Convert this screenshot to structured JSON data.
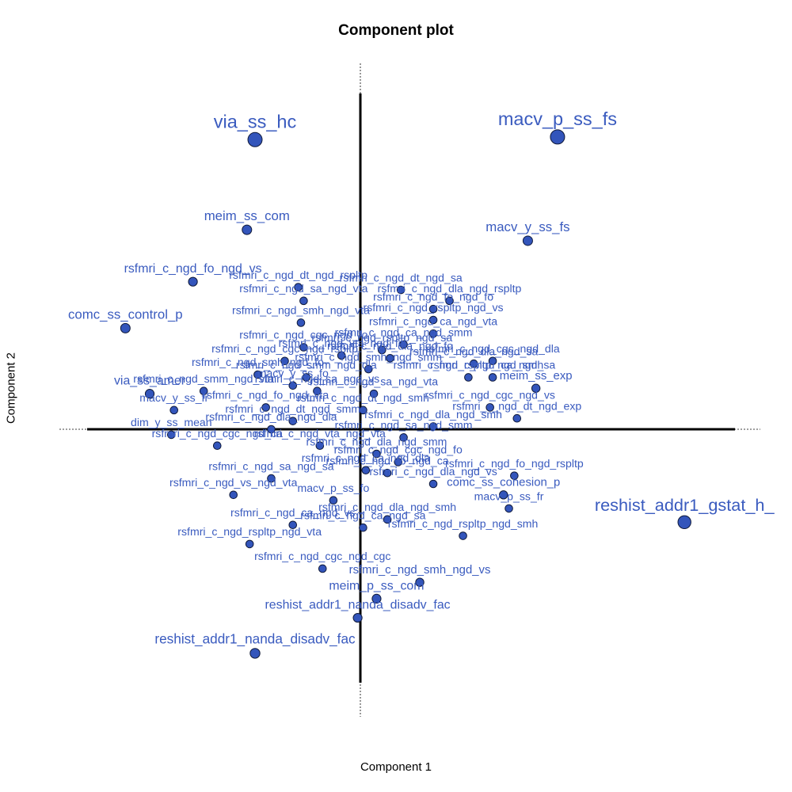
{
  "chart_data": {
    "type": "scatter",
    "title": "Component plot",
    "xlabel": "Component 1",
    "ylabel": "Component 2",
    "xlim": [
      -1.2,
      1.2
    ],
    "ylim": [
      -1.2,
      1.2
    ],
    "grid": false,
    "colors": {
      "point_fill": "#3355bb",
      "point_stroke": "#101a3a",
      "label": "#3a5bbf",
      "axis": "#000000"
    },
    "points": [
      {
        "label": "via_ss_hc",
        "x": -0.39,
        "y": 1.06,
        "size": 3.0
      },
      {
        "label": "macv_p_ss_fs",
        "x": 0.73,
        "y": 1.07,
        "size": 3.0
      },
      {
        "label": "meim_ss_com",
        "x": -0.42,
        "y": 0.73,
        "size": 1.5
      },
      {
        "label": "macv_y_ss_fs",
        "x": 0.62,
        "y": 0.69,
        "size": 1.5
      },
      {
        "label": "rsfmri_c_ngd_fo_ngd_vs",
        "x": -0.62,
        "y": 0.54,
        "size": 1.3
      },
      {
        "label": "comc_ss_control_p",
        "x": -0.87,
        "y": 0.37,
        "size": 1.5
      },
      {
        "label": "rsfmri_c_ngd_dt_ngd_rspltp",
        "x": -0.23,
        "y": 0.52,
        "size": 0.9
      },
      {
        "label": "rsfmri_c_ngd_dt_ngd_sa",
        "x": 0.15,
        "y": 0.51,
        "size": 0.9
      },
      {
        "label": "rsfmri_c_ngd_sa_ngd_vta",
        "x": -0.21,
        "y": 0.47,
        "size": 0.9
      },
      {
        "label": "rsfmri_c_ngd_dla_ngd_rspltp",
        "x": 0.33,
        "y": 0.47,
        "size": 0.9
      },
      {
        "label": "rsfmri_c_ngd_fo_ngd_fo",
        "x": 0.27,
        "y": 0.44,
        "size": 0.9
      },
      {
        "label": "rsfmri_c_ngd_smh_ngd_vta",
        "x": -0.22,
        "y": 0.39,
        "size": 0.9
      },
      {
        "label": "rsfmri_c_ngd_rspltp_ngd_vs",
        "x": 0.27,
        "y": 0.4,
        "size": 0.9
      },
      {
        "label": "rsfmri_c_ngd_ca_ngd_vta",
        "x": 0.27,
        "y": 0.35,
        "size": 0.9
      },
      {
        "label": "rsfmri_c_ngd_ca_ngd_smm",
        "x": 0.16,
        "y": 0.31,
        "size": 0.9
      },
      {
        "label": "rsfmri_c_ngd_cgc_ngd_fo",
        "x": -0.21,
        "y": 0.3,
        "size": 0.9
      },
      {
        "label": "rsfmri_c_ngd_rspltp_ngd_sa",
        "x": 0.08,
        "y": 0.29,
        "size": 0.9
      },
      {
        "label": "rsfmri_c_ngd_vta_ngd_fo",
        "x": -0.07,
        "y": 0.27,
        "size": 0.9
      },
      {
        "label": "rsfmri_c_ngd_dla_ngd_fo",
        "x": 0.11,
        "y": 0.26,
        "size": 0.9
      },
      {
        "label": "rsfmri_c_ngd_cgc_ngd_rspltp",
        "x": -0.28,
        "y": 0.25,
        "size": 0.9
      },
      {
        "label": "rsfmri_c_ngd_cgc_ngd_dla",
        "x": 0.49,
        "y": 0.25,
        "size": 0.9
      },
      {
        "label": "rsfmri_c_ngd_smh_ngd_smm",
        "x": 0.03,
        "y": 0.22,
        "size": 0.9
      },
      {
        "label": "rsfmri_c_ngd_dla_ngd_sa",
        "x": 0.42,
        "y": 0.24,
        "size": 0.9
      },
      {
        "label": "rsfmri_c_ngd_smh_ngd_fo",
        "x": -0.38,
        "y": 0.2,
        "size": 0.9
      },
      {
        "label": "rsfmri_c_ngd_smm_ngd_dla",
        "x": -0.2,
        "y": 0.19,
        "size": 0.9
      },
      {
        "label": "rsfmri_c_ngd_rspltp_ngd_smh",
        "x": 0.4,
        "y": 0.19,
        "size": 0.9
      },
      {
        "label": "rsfmri_c_ngd_ca_ngd_sa",
        "x": 0.49,
        "y": 0.19,
        "size": 0.9
      },
      {
        "label": "macv_y_ss_fo",
        "x": -0.25,
        "y": 0.16,
        "size": 0.9
      },
      {
        "label": "rsfmri_c_ngd_sa_ngd_vs",
        "x": -0.16,
        "y": 0.14,
        "size": 0.9
      },
      {
        "label": "rsfmri_c_ngd_smm_ngd_vta",
        "x": -0.58,
        "y": 0.14,
        "size": 0.9
      },
      {
        "label": "via_ss_amer",
        "x": -0.78,
        "y": 0.13,
        "size": 1.3
      },
      {
        "label": "rsfmri_c_ngd_sa_ngd_vta",
        "x": 0.05,
        "y": 0.13,
        "size": 0.9
      },
      {
        "label": "meim_ss_exp",
        "x": 0.65,
        "y": 0.15,
        "size": 1.1
      },
      {
        "label": "rsfmri_c_ngd_fo_ngd_vta",
        "x": -0.35,
        "y": 0.08,
        "size": 0.9
      },
      {
        "label": "rsfmri_c_ngd_dt_ngd_smh",
        "x": 0.01,
        "y": 0.07,
        "size": 0.9
      },
      {
        "label": "rsfmri_c_ngd_cgc_ngd_vs",
        "x": 0.48,
        "y": 0.08,
        "size": 0.9
      },
      {
        "label": "rsfmri_c_ngd_dt_ngd_exp",
        "x": 0.58,
        "y": 0.04,
        "size": 0.9
      },
      {
        "label": "macv_y_ss_fr",
        "x": -0.69,
        "y": 0.07,
        "size": 0.9
      },
      {
        "label": "rsfmri_c_ngd_dt_ngd_smm",
        "x": -0.25,
        "y": 0.03,
        "size": 0.9
      },
      {
        "label": "rsfmri_c_ngd_dla_ngd_dla",
        "x": -0.33,
        "y": 0.0,
        "size": 0.9
      },
      {
        "label": "rsfmri_c_ngd_dla_ngd_smh",
        "x": 0.27,
        "y": 0.01,
        "size": 0.9
      },
      {
        "label": "dim_y_ss_mean",
        "x": -0.7,
        "y": -0.02,
        "size": 0.9
      },
      {
        "label": "rsfmri_c_ngd_cgc_ngd_ca",
        "x": -0.53,
        "y": -0.06,
        "size": 0.9
      },
      {
        "label": "rsfmri_c_ngd_sa_ngd_smm",
        "x": 0.16,
        "y": -0.03,
        "size": 0.9
      },
      {
        "label": "rsfmri_c_ngd_vta_ngd_vta",
        "x": -0.15,
        "y": -0.06,
        "size": 0.9
      },
      {
        "label": "rsfmri_c_ngd_dla_ngd_smm",
        "x": 0.06,
        "y": -0.09,
        "size": 0.9
      },
      {
        "label": "rsfmri_c_ngd_cgc_ngd_fo",
        "x": 0.14,
        "y": -0.12,
        "size": 0.9
      },
      {
        "label": "rsfmri_c_ngd_fo_ngd_rspltp",
        "x": 0.57,
        "y": -0.17,
        "size": 0.9
      },
      {
        "label": "rsfmri_c_ngd_fo_ngd_ca",
        "x": 0.1,
        "y": -0.16,
        "size": 0.9
      },
      {
        "label": "rsfmri_c_ngd_ca_ngd_dla",
        "x": 0.02,
        "y": -0.15,
        "size": 0.9
      },
      {
        "label": "rsfmri_c_ngd_dla_ngd_vs",
        "x": 0.27,
        "y": -0.2,
        "size": 0.9
      },
      {
        "label": "rsfmri_c_ngd_sa_ngd_sa",
        "x": -0.33,
        "y": -0.18,
        "size": 0.9
      },
      {
        "label": "rsfmri_c_ngd_vs_ngd_vta",
        "x": -0.47,
        "y": -0.24,
        "size": 0.9
      },
      {
        "label": "comc_ss_cohesion_p",
        "x": 0.53,
        "y": -0.24,
        "size": 1.1
      },
      {
        "label": "macv_p_ss_fo",
        "x": -0.1,
        "y": -0.26,
        "size": 0.9
      },
      {
        "label": "macv_p_ss_fr",
        "x": 0.55,
        "y": -0.29,
        "size": 0.9
      },
      {
        "label": "rsfmri_c_ngd_dla_ngd_smh",
        "x": 0.1,
        "y": -0.33,
        "size": 0.9
      },
      {
        "label": "rsfmri_c_ngd_ca_ngd_vs",
        "x": -0.25,
        "y": -0.35,
        "size": 0.9
      },
      {
        "label": "rsfmri_c_ngd_ca_ngd_sa",
        "x": 0.01,
        "y": -0.36,
        "size": 0.9
      },
      {
        "label": "rsfmri_c_ngd_rspltp_ngd_smh",
        "x": 0.38,
        "y": -0.39,
        "size": 0.9
      },
      {
        "label": "rsfmri_c_ngd_rspltp_ngd_vta",
        "x": -0.41,
        "y": -0.42,
        "size": 0.9
      },
      {
        "label": "rsfmri_c_ngd_cgc_ngd_cgc",
        "x": -0.14,
        "y": -0.51,
        "size": 0.9
      },
      {
        "label": "rsfmri_c_ngd_smh_ngd_vs",
        "x": 0.22,
        "y": -0.56,
        "size": 1.1
      },
      {
        "label": "meim_p_ss_com",
        "x": 0.06,
        "y": -0.62,
        "size": 1.3
      },
      {
        "label": "reshist_addr1_nanda_disadv_fac",
        "x": -0.01,
        "y": -0.69,
        "size": 1.3
      },
      {
        "label": "reshist_addr1_nanda_disadv_fac",
        "x": -0.39,
        "y": -0.82,
        "size": 1.6
      },
      {
        "label": "reshist_addr1_gstat_h_",
        "x": 1.2,
        "y": -0.34,
        "size": 2.6
      }
    ]
  }
}
